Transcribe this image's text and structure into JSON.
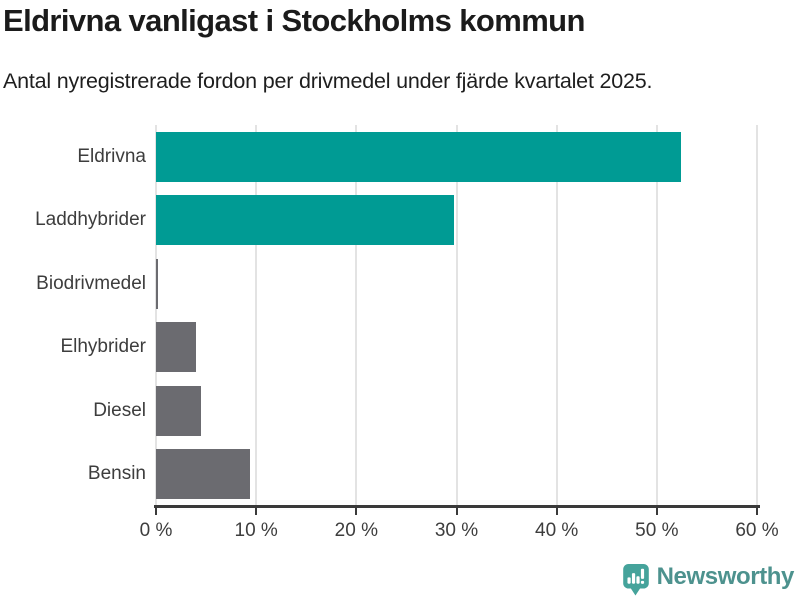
{
  "header": {
    "title": "Eldrivna vanligast i Stockholms kommun",
    "subtitle": "Antal nyregistrerade fordon per drivmedel under fjärde kvartalet 2025."
  },
  "footer": {
    "brand": "Newsworthy",
    "logo_icon": "bar-chart-speech-bubble-icon",
    "brand_color": "#45a39b",
    "brand_text_color": "#4d928e"
  },
  "colors": {
    "accent_teal": "#009b94",
    "muted_gray": "#6b6b70",
    "axis": "#3a3a3a",
    "gridline": "#e3e3e3",
    "text_dark": "#1b1b1b",
    "label_gray": "#3d3d3d"
  },
  "chart_data": {
    "type": "bar",
    "orientation": "horizontal",
    "title": "Eldrivna vanligast i Stockholms kommun",
    "subtitle": "Antal nyregistrerade fordon per drivmedel under fjärde kvartalet 2025.",
    "categories": [
      "Eldrivna",
      "Laddhybrider",
      "Biodrivmedel",
      "Elhybrider",
      "Diesel",
      "Bensin"
    ],
    "values": [
      52.4,
      29.8,
      0.2,
      4.0,
      4.5,
      9.4
    ],
    "unit": "%",
    "xlabel": "",
    "ylabel": "",
    "xlim": [
      0,
      60
    ],
    "xticks": [
      0,
      10,
      20,
      30,
      40,
      50,
      60
    ],
    "xtick_labels": [
      "0 %",
      "10 %",
      "20 %",
      "30 %",
      "40 %",
      "50 %",
      "60 %"
    ],
    "bar_colors": [
      "#009b94",
      "#009b94",
      "#6b6b70",
      "#6b6b70",
      "#6b6b70",
      "#6b6b70"
    ],
    "grid": true,
    "legend": false
  }
}
